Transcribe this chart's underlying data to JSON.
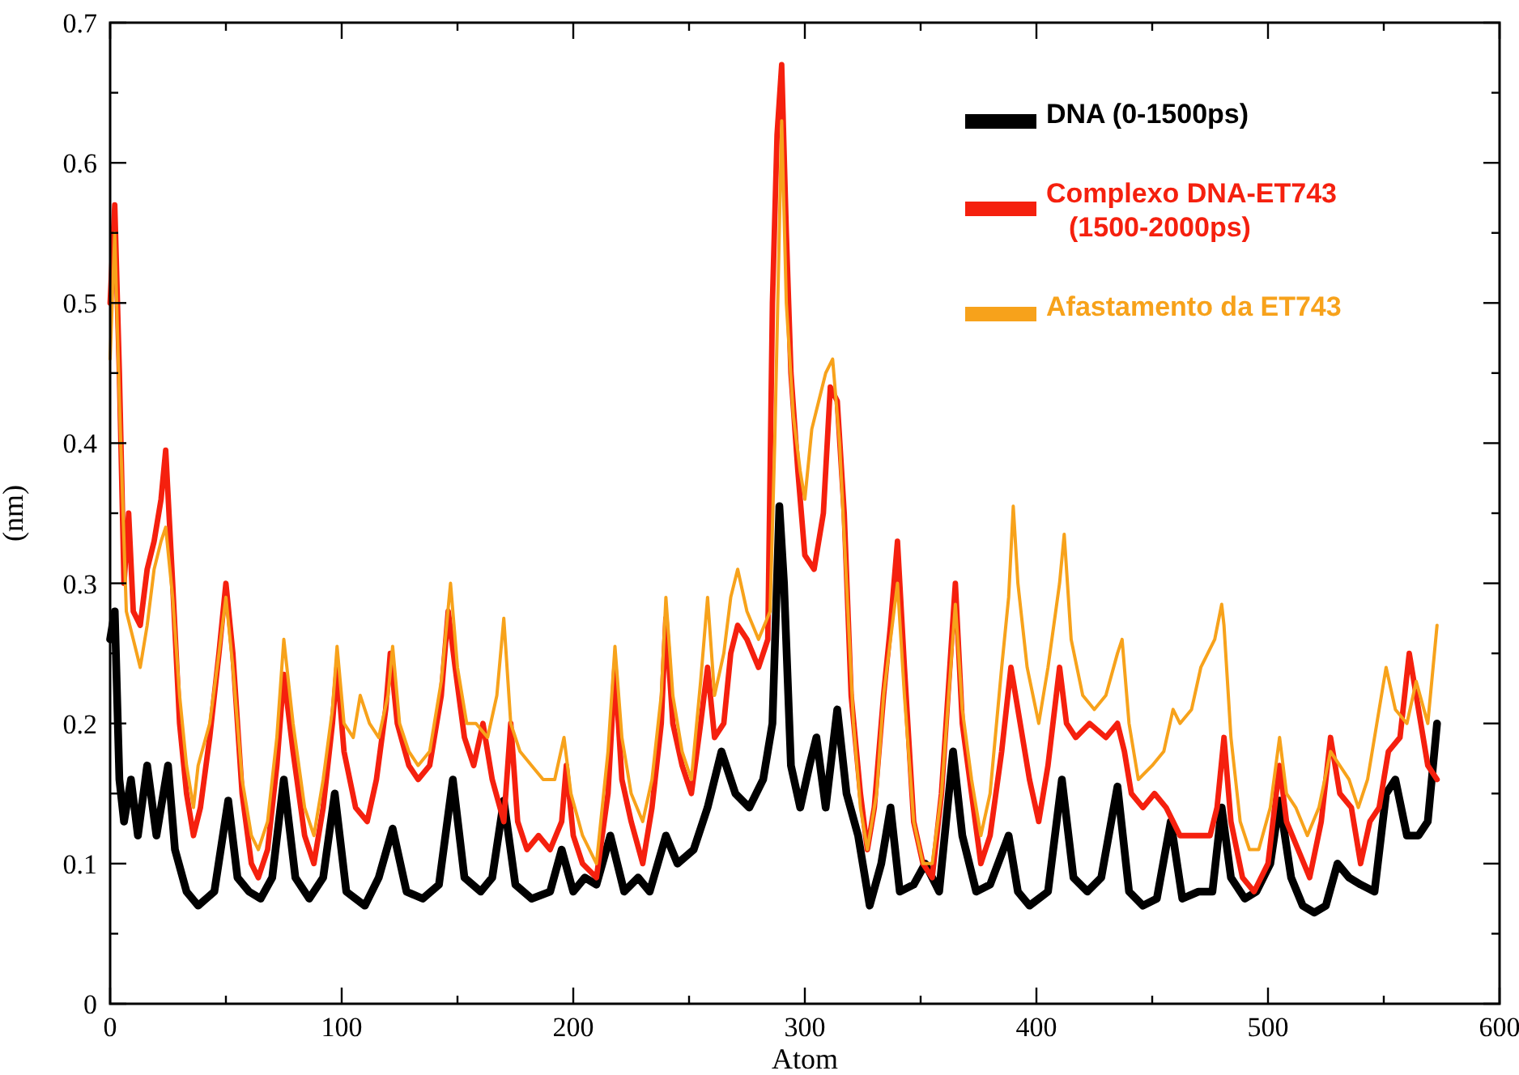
{
  "chart_data": {
    "type": "line",
    "xlabel": "Atom",
    "ylabel": "(nm)",
    "xlim": [
      0,
      600
    ],
    "ylim": [
      0,
      0.7
    ],
    "xticks": [
      0,
      {
        "value": 50,
        "label": null
      },
      100,
      {
        "value": 150,
        "label": null
      },
      200,
      {
        "value": 250,
        "label": null
      },
      300,
      {
        "value": 350,
        "label": null
      },
      400,
      {
        "value": 450,
        "label": null
      },
      500,
      {
        "value": 550,
        "label": null
      },
      600
    ],
    "yticks": [
      0,
      {
        "value": 0.05,
        "label": null
      },
      0.1,
      {
        "value": 0.15,
        "label": null
      },
      0.2,
      {
        "value": 0.25,
        "label": null
      },
      0.3,
      {
        "value": 0.35,
        "label": null
      },
      0.4,
      {
        "value": 0.45,
        "label": null
      },
      0.5,
      {
        "value": 0.55,
        "label": null
      },
      0.6,
      {
        "value": 0.65,
        "label": null
      },
      0.7
    ],
    "grid": false,
    "legend": "top right",
    "marker": "none",
    "line_style": "solid",
    "series": [
      {
        "name": "DNA (0-1500ps)",
        "color": "#000000",
        "x": [
          0,
          2,
          4,
          6,
          9,
          12,
          16,
          20,
          25,
          28,
          33,
          38,
          45,
          51,
          55,
          60,
          65,
          70,
          75,
          80,
          86,
          92,
          97,
          102,
          110,
          116,
          122,
          128,
          135,
          142,
          148,
          153,
          160,
          165,
          170,
          175,
          182,
          190,
          195,
          200,
          205,
          210,
          216,
          222,
          228,
          233,
          240,
          245,
          252,
          258,
          264,
          270,
          276,
          282,
          286,
          289,
          291,
          294,
          298,
          302,
          305,
          309,
          314,
          318,
          323,
          328,
          333,
          337,
          341,
          347,
          352,
          358,
          364,
          368,
          374,
          380,
          388,
          392,
          397,
          405,
          411,
          416,
          422,
          428,
          435,
          440,
          446,
          452,
          458,
          463,
          470,
          476,
          480,
          484,
          490,
          495,
          501,
          505,
          510,
          515,
          520,
          525,
          530,
          535,
          540,
          546,
          551,
          555,
          560,
          565,
          569,
          573
        ],
        "values": [
          0.26,
          0.28,
          0.16,
          0.13,
          0.16,
          0.12,
          0.17,
          0.12,
          0.17,
          0.11,
          0.08,
          0.07,
          0.08,
          0.145,
          0.09,
          0.08,
          0.075,
          0.09,
          0.16,
          0.09,
          0.075,
          0.09,
          0.15,
          0.08,
          0.07,
          0.09,
          0.125,
          0.08,
          0.075,
          0.085,
          0.16,
          0.09,
          0.08,
          0.09,
          0.145,
          0.085,
          0.075,
          0.08,
          0.11,
          0.08,
          0.09,
          0.085,
          0.12,
          0.08,
          0.09,
          0.08,
          0.12,
          0.1,
          0.11,
          0.14,
          0.18,
          0.15,
          0.14,
          0.16,
          0.2,
          0.355,
          0.3,
          0.17,
          0.14,
          0.17,
          0.19,
          0.14,
          0.21,
          0.15,
          0.12,
          0.07,
          0.1,
          0.14,
          0.08,
          0.085,
          0.1,
          0.08,
          0.18,
          0.12,
          0.08,
          0.085,
          0.12,
          0.08,
          0.07,
          0.08,
          0.16,
          0.09,
          0.08,
          0.09,
          0.155,
          0.08,
          0.07,
          0.075,
          0.13,
          0.075,
          0.08,
          0.08,
          0.14,
          0.09,
          0.075,
          0.08,
          0.1,
          0.145,
          0.09,
          0.07,
          0.065,
          0.07,
          0.1,
          0.09,
          0.085,
          0.08,
          0.15,
          0.16,
          0.12,
          0.12,
          0.13,
          0.2
        ]
      },
      {
        "name": "Complexo DNA-ET743 (1500-2000ps)",
        "color": "#f5200e",
        "x": [
          0,
          2,
          4,
          6,
          8,
          10,
          13,
          16,
          19,
          22,
          24,
          27,
          30,
          33,
          36,
          39,
          43,
          47,
          50,
          53,
          57,
          61,
          64,
          68,
          72,
          75,
          79,
          84,
          88,
          92,
          96,
          98,
          101,
          106,
          111,
          115,
          119,
          121,
          124,
          129,
          133,
          138,
          143,
          146,
          149,
          153,
          157,
          161,
          165,
          170,
          173,
          176,
          180,
          185,
          190,
          195,
          197,
          200,
          204,
          210,
          215,
          218,
          221,
          225,
          230,
          234,
          238,
          240,
          243,
          247,
          251,
          255,
          258,
          261,
          265,
          268,
          271,
          275,
          280,
          284,
          286,
          288,
          290,
          292,
          294,
          297,
          300,
          304,
          308,
          311,
          314,
          317,
          320,
          324,
          327,
          330,
          334,
          337,
          340,
          343,
          347,
          351,
          355,
          359,
          363,
          365,
          368,
          372,
          376,
          380,
          385,
          389,
          393,
          397,
          401,
          405,
          410,
          413,
          417,
          423,
          430,
          435,
          438,
          441,
          446,
          451,
          456,
          462,
          468,
          475,
          478,
          481,
          484,
          489,
          494,
          500,
          505,
          508,
          513,
          518,
          523,
          527,
          531,
          536,
          540,
          544,
          548,
          552,
          557,
          561,
          565,
          569,
          573
        ],
        "values": [
          0.5,
          0.57,
          0.45,
          0.3,
          0.35,
          0.28,
          0.27,
          0.31,
          0.33,
          0.36,
          0.395,
          0.3,
          0.2,
          0.15,
          0.12,
          0.14,
          0.19,
          0.25,
          0.3,
          0.25,
          0.15,
          0.1,
          0.09,
          0.11,
          0.17,
          0.235,
          0.18,
          0.12,
          0.1,
          0.14,
          0.2,
          0.24,
          0.18,
          0.14,
          0.13,
          0.16,
          0.21,
          0.25,
          0.2,
          0.17,
          0.16,
          0.17,
          0.22,
          0.28,
          0.24,
          0.19,
          0.17,
          0.2,
          0.16,
          0.13,
          0.2,
          0.13,
          0.11,
          0.12,
          0.11,
          0.13,
          0.17,
          0.12,
          0.1,
          0.09,
          0.15,
          0.24,
          0.16,
          0.13,
          0.1,
          0.14,
          0.2,
          0.275,
          0.2,
          0.17,
          0.15,
          0.2,
          0.24,
          0.19,
          0.2,
          0.25,
          0.27,
          0.26,
          0.24,
          0.26,
          0.5,
          0.62,
          0.67,
          0.55,
          0.45,
          0.38,
          0.32,
          0.31,
          0.35,
          0.44,
          0.43,
          0.35,
          0.22,
          0.15,
          0.11,
          0.14,
          0.22,
          0.27,
          0.33,
          0.24,
          0.13,
          0.1,
          0.09,
          0.15,
          0.25,
          0.3,
          0.2,
          0.15,
          0.1,
          0.12,
          0.18,
          0.24,
          0.2,
          0.16,
          0.13,
          0.17,
          0.24,
          0.2,
          0.19,
          0.2,
          0.19,
          0.2,
          0.18,
          0.15,
          0.14,
          0.15,
          0.14,
          0.12,
          0.12,
          0.12,
          0.14,
          0.19,
          0.13,
          0.09,
          0.08,
          0.1,
          0.17,
          0.13,
          0.11,
          0.09,
          0.13,
          0.19,
          0.15,
          0.14,
          0.1,
          0.13,
          0.14,
          0.18,
          0.19,
          0.25,
          0.21,
          0.17,
          0.16
        ]
      },
      {
        "name": "Afastamento da ET743",
        "color": "#f7a21b",
        "x": [
          0,
          2,
          4,
          7,
          10,
          13,
          16,
          19,
          22,
          24,
          27,
          30,
          33,
          36,
          38,
          43,
          47,
          50,
          53,
          57,
          61,
          64,
          68,
          72,
          75,
          79,
          84,
          88,
          92,
          96,
          98,
          101,
          105,
          108,
          112,
          116,
          120,
          122,
          125,
          129,
          133,
          138,
          143,
          147,
          150,
          154,
          158,
          163,
          167,
          170,
          173,
          177,
          182,
          187,
          192,
          196,
          199,
          204,
          210,
          215,
          218,
          221,
          225,
          230,
          234,
          238,
          240,
          243,
          247,
          251,
          255,
          258,
          261,
          265,
          268,
          271,
          275,
          280,
          285,
          287,
          290,
          292,
          295,
          298,
          300,
          303,
          306,
          309,
          312,
          315,
          318,
          321,
          324,
          327,
          331,
          334,
          337,
          340,
          343,
          347,
          351,
          355,
          359,
          363,
          365,
          368,
          372,
          376,
          380,
          385,
          388,
          390,
          392,
          396,
          401,
          405,
          410,
          412,
          415,
          420,
          425,
          430,
          435,
          437,
          440,
          444,
          450,
          455,
          459,
          462,
          467,
          471,
          474,
          477,
          480,
          481,
          484,
          488,
          492,
          496,
          501,
          505,
          508,
          512,
          517,
          522,
          527,
          531,
          535,
          539,
          543,
          547,
          551,
          555,
          560,
          564,
          569,
          573
        ],
        "values": [
          0.46,
          0.55,
          0.43,
          0.28,
          0.26,
          0.24,
          0.27,
          0.31,
          0.33,
          0.34,
          0.29,
          0.22,
          0.17,
          0.14,
          0.17,
          0.2,
          0.25,
          0.29,
          0.24,
          0.16,
          0.12,
          0.11,
          0.13,
          0.19,
          0.26,
          0.2,
          0.14,
          0.12,
          0.16,
          0.21,
          0.255,
          0.2,
          0.19,
          0.22,
          0.2,
          0.19,
          0.22,
          0.255,
          0.2,
          0.18,
          0.17,
          0.18,
          0.23,
          0.3,
          0.24,
          0.2,
          0.2,
          0.19,
          0.22,
          0.275,
          0.2,
          0.18,
          0.17,
          0.16,
          0.16,
          0.19,
          0.15,
          0.12,
          0.1,
          0.18,
          0.255,
          0.19,
          0.15,
          0.13,
          0.16,
          0.22,
          0.29,
          0.22,
          0.18,
          0.16,
          0.23,
          0.29,
          0.22,
          0.25,
          0.29,
          0.31,
          0.28,
          0.26,
          0.28,
          0.4,
          0.63,
          0.5,
          0.42,
          0.38,
          0.36,
          0.41,
          0.43,
          0.45,
          0.46,
          0.4,
          0.3,
          0.2,
          0.14,
          0.11,
          0.15,
          0.22,
          0.26,
          0.3,
          0.22,
          0.13,
          0.1,
          0.1,
          0.15,
          0.24,
          0.285,
          0.21,
          0.16,
          0.12,
          0.15,
          0.24,
          0.29,
          0.355,
          0.3,
          0.24,
          0.2,
          0.24,
          0.3,
          0.335,
          0.26,
          0.22,
          0.21,
          0.22,
          0.25,
          0.26,
          0.2,
          0.16,
          0.17,
          0.18,
          0.21,
          0.2,
          0.21,
          0.24,
          0.25,
          0.26,
          0.285,
          0.27,
          0.19,
          0.13,
          0.11,
          0.11,
          0.14,
          0.19,
          0.15,
          0.14,
          0.12,
          0.14,
          0.18,
          0.17,
          0.16,
          0.14,
          0.16,
          0.2,
          0.24,
          0.21,
          0.2,
          0.23,
          0.2,
          0.27
        ]
      }
    ]
  }
}
